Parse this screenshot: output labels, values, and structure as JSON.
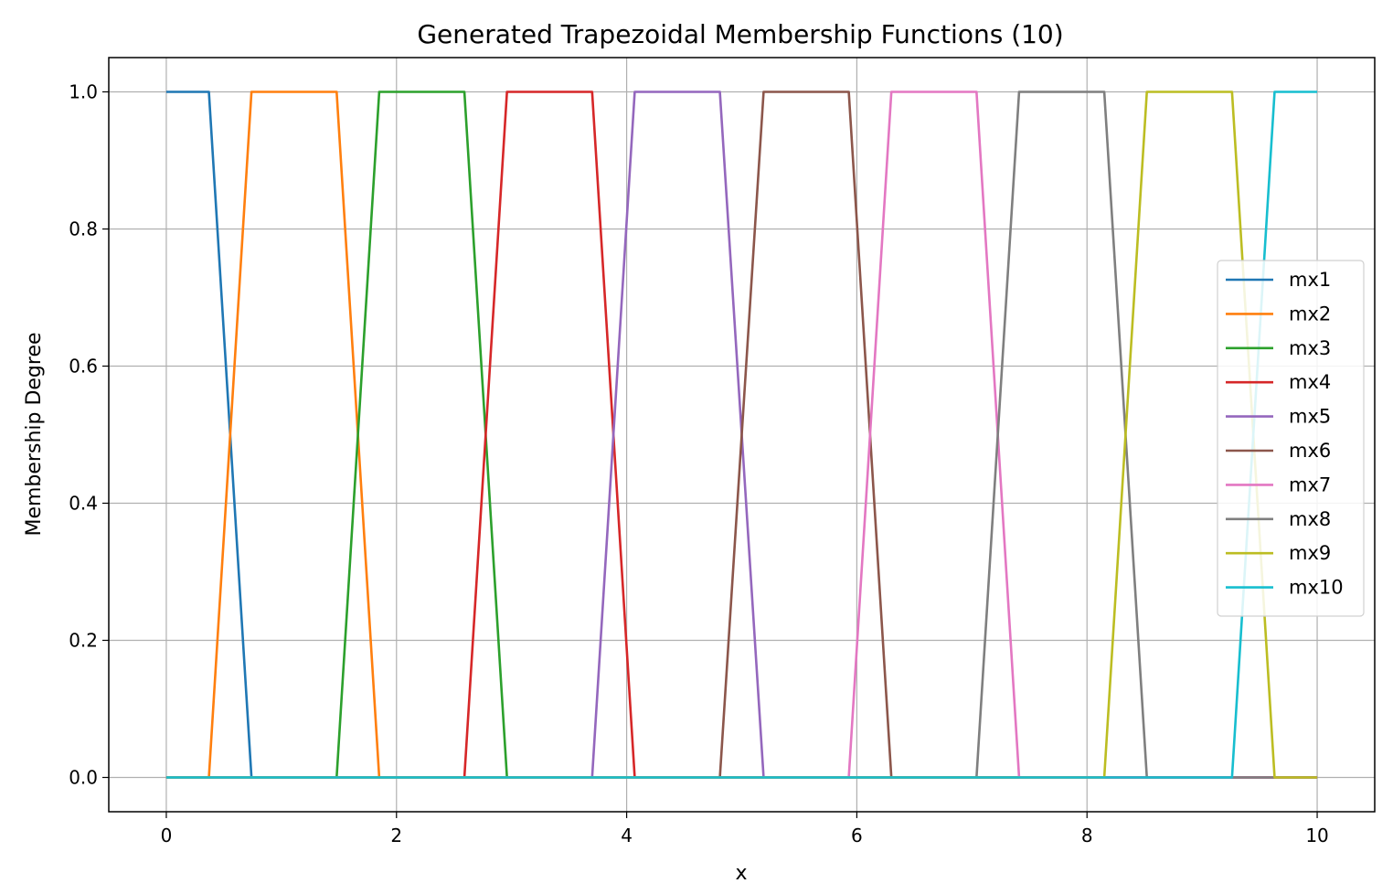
{
  "chart_data": {
    "type": "line",
    "title": "Generated Trapezoidal Membership Functions (10)",
    "xlabel": "x",
    "ylabel": "Membership Degree",
    "xlim": [
      -0.5,
      10.5
    ],
    "ylim": [
      -0.05,
      1.05
    ],
    "xticks": [
      0,
      2,
      4,
      6,
      8,
      10
    ],
    "xtick_labels": [
      "0",
      "2",
      "4",
      "6",
      "8",
      "10"
    ],
    "yticks": [
      0.0,
      0.2,
      0.4,
      0.6,
      0.8,
      1.0
    ],
    "ytick_labels": [
      "0.0",
      "0.2",
      "0.4",
      "0.6",
      "0.8",
      "1.0"
    ],
    "grid": true,
    "legend_position": "center-right",
    "series": [
      {
        "name": "mx1",
        "color": "#1f77b4",
        "x": [
          0,
          0.37,
          0.74,
          10
        ],
        "y": [
          1,
          1,
          0,
          0
        ]
      },
      {
        "name": "mx2",
        "color": "#ff7f0e",
        "x": [
          0,
          0.37,
          0.74,
          1.48,
          1.85,
          10
        ],
        "y": [
          0,
          0,
          1,
          1,
          0,
          0
        ]
      },
      {
        "name": "mx3",
        "color": "#2ca02c",
        "x": [
          0,
          1.48,
          1.85,
          2.59,
          2.96,
          10
        ],
        "y": [
          0,
          0,
          1,
          1,
          0,
          0
        ]
      },
      {
        "name": "mx4",
        "color": "#d62728",
        "x": [
          0,
          2.59,
          2.96,
          3.7,
          4.07,
          10
        ],
        "y": [
          0,
          0,
          1,
          1,
          0,
          0
        ]
      },
      {
        "name": "mx5",
        "color": "#9467bd",
        "x": [
          0,
          3.7,
          4.07,
          4.81,
          5.19,
          10
        ],
        "y": [
          0,
          0,
          1,
          1,
          0,
          0
        ]
      },
      {
        "name": "mx6",
        "color": "#8c564b",
        "x": [
          0,
          4.81,
          5.19,
          5.93,
          6.3,
          10
        ],
        "y": [
          0,
          0,
          1,
          1,
          0,
          0
        ]
      },
      {
        "name": "mx7",
        "color": "#e377c2",
        "x": [
          0,
          5.93,
          6.3,
          7.04,
          7.41,
          10
        ],
        "y": [
          0,
          0,
          1,
          1,
          0,
          0
        ]
      },
      {
        "name": "mx8",
        "color": "#7f7f7f",
        "x": [
          0,
          7.04,
          7.41,
          8.15,
          8.52,
          10
        ],
        "y": [
          0,
          0,
          1,
          1,
          0,
          0
        ]
      },
      {
        "name": "mx9",
        "color": "#bcbd22",
        "x": [
          0,
          8.15,
          8.52,
          9.26,
          9.63,
          10
        ],
        "y": [
          0,
          0,
          1,
          1,
          0,
          0
        ]
      },
      {
        "name": "mx10",
        "color": "#17becf",
        "x": [
          0,
          9.26,
          9.63,
          10
        ],
        "y": [
          0,
          0,
          1,
          1
        ]
      }
    ]
  }
}
